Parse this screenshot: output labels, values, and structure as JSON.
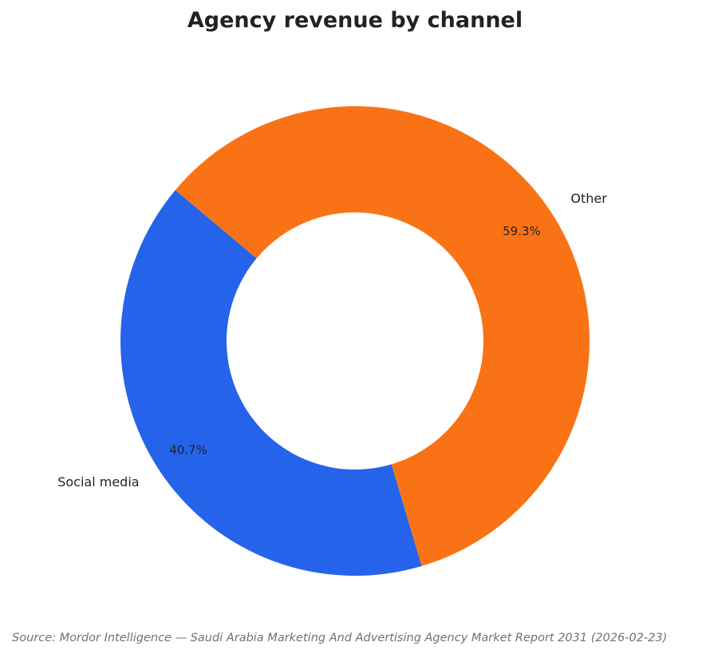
{
  "chart_data": {
    "type": "pie",
    "variant": "donut",
    "title": "Agency revenue by channel",
    "categories": [
      "Social media",
      "Other"
    ],
    "values": [
      40.7,
      59.3
    ],
    "value_labels": [
      "40.7%",
      "59.3%"
    ],
    "colors": [
      "#2563eb",
      "#f97316"
    ],
    "legend": "none",
    "grid": false
  },
  "source_note": "Source: Mordor Intelligence — Saudi Arabia Marketing And Advertising Agency Market Report 2031 (2026-02-23)"
}
